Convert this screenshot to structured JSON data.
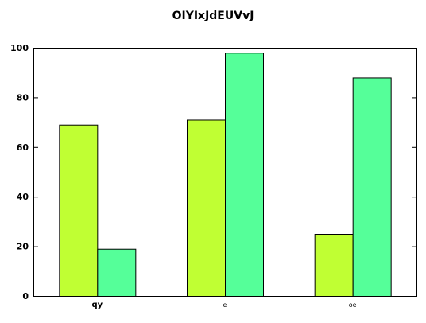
{
  "chart_data": {
    "type": "bar",
    "title": "OIYIxJdEUVvJ",
    "xlabel": "",
    "ylabel": "",
    "categories": [
      "qy",
      "e",
      "oe"
    ],
    "series": [
      {
        "values": [
          69,
          71,
          25
        ],
        "color": "#c0ff33"
      },
      {
        "values": [
          19,
          98,
          88
        ],
        "color": "#55ff99"
      }
    ],
    "ylim": [
      0,
      100
    ],
    "yticks": [
      0,
      20,
      40,
      60,
      80,
      100
    ],
    "ytick_labels": [
      "0",
      "20",
      "40",
      "60",
      "80",
      "100"
    ],
    "grid": false,
    "legend": "none"
  }
}
